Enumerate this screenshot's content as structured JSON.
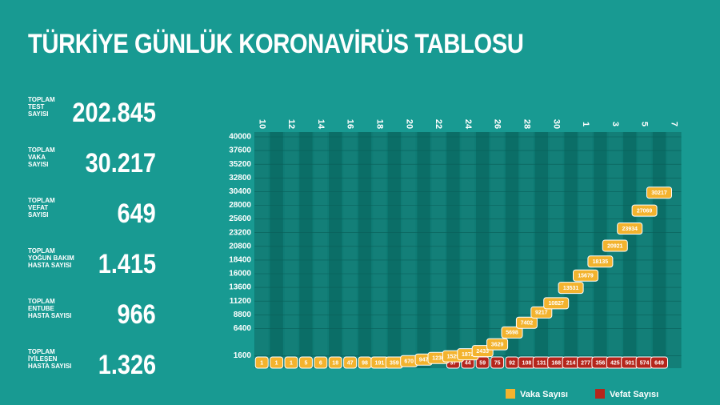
{
  "header": {
    "title": "TÜRKİYE GÜNLÜK KORONAVİRÜS TABLOSU"
  },
  "stats": [
    {
      "label": "TOPLAM\nTEST\nSAYISI",
      "value": "202.845"
    },
    {
      "label": "TOPLAM\nVAKA\nSAYISI",
      "value": "30.217"
    },
    {
      "label": "TOPLAM\nVEFAT\nSAYISI",
      "value": "649"
    },
    {
      "label": "TOPLAM\nYOĞUN BAKIM\nHASTA SAYISI",
      "value": "1.415"
    },
    {
      "label": "TOPLAM\nENTUBE\nHASTA SAYISI",
      "value": "966"
    },
    {
      "label": "TOPLAM\nİYİLEŞEN\nHASTA SAYISI",
      "value": "1.326"
    }
  ],
  "chart_data": {
    "type": "box-line",
    "categories": [
      "10",
      null,
      "12",
      null,
      "14",
      null,
      "16",
      null,
      "18",
      null,
      "20",
      null,
      "22",
      null,
      "24",
      null,
      "26",
      null,
      "28",
      null,
      "30",
      null,
      "1",
      null,
      "3",
      null,
      "5",
      null,
      "7"
    ],
    "series": [
      {
        "name": "Vaka Sayısı",
        "color": "#f3b32e",
        "values": [
          1,
          1,
          1,
          5,
          6,
          18,
          47,
          98,
          191,
          359,
          670,
          947,
          1236,
          1529,
          1872,
          2433,
          3629,
          5698,
          7402,
          9217,
          10827,
          13531,
          15679,
          18135,
          20921,
          23934,
          27069,
          30217,
          null
        ]
      },
      {
        "name": "Vefat Sayısı",
        "color": "#b5261c",
        "values": [
          null,
          null,
          null,
          null,
          null,
          null,
          null,
          null,
          null,
          null,
          null,
          null,
          null,
          37,
          44,
          59,
          75,
          92,
          108,
          131,
          168,
          214,
          277,
          356,
          425,
          501,
          574,
          649,
          null
        ]
      }
    ],
    "ylim": [
      0,
      40000
    ],
    "yticks": [
      1600,
      6400,
      8800,
      11200,
      13600,
      16000,
      18400,
      20800,
      23200,
      25600,
      28000,
      30400,
      32800,
      35200,
      37600,
      40000
    ]
  }
}
